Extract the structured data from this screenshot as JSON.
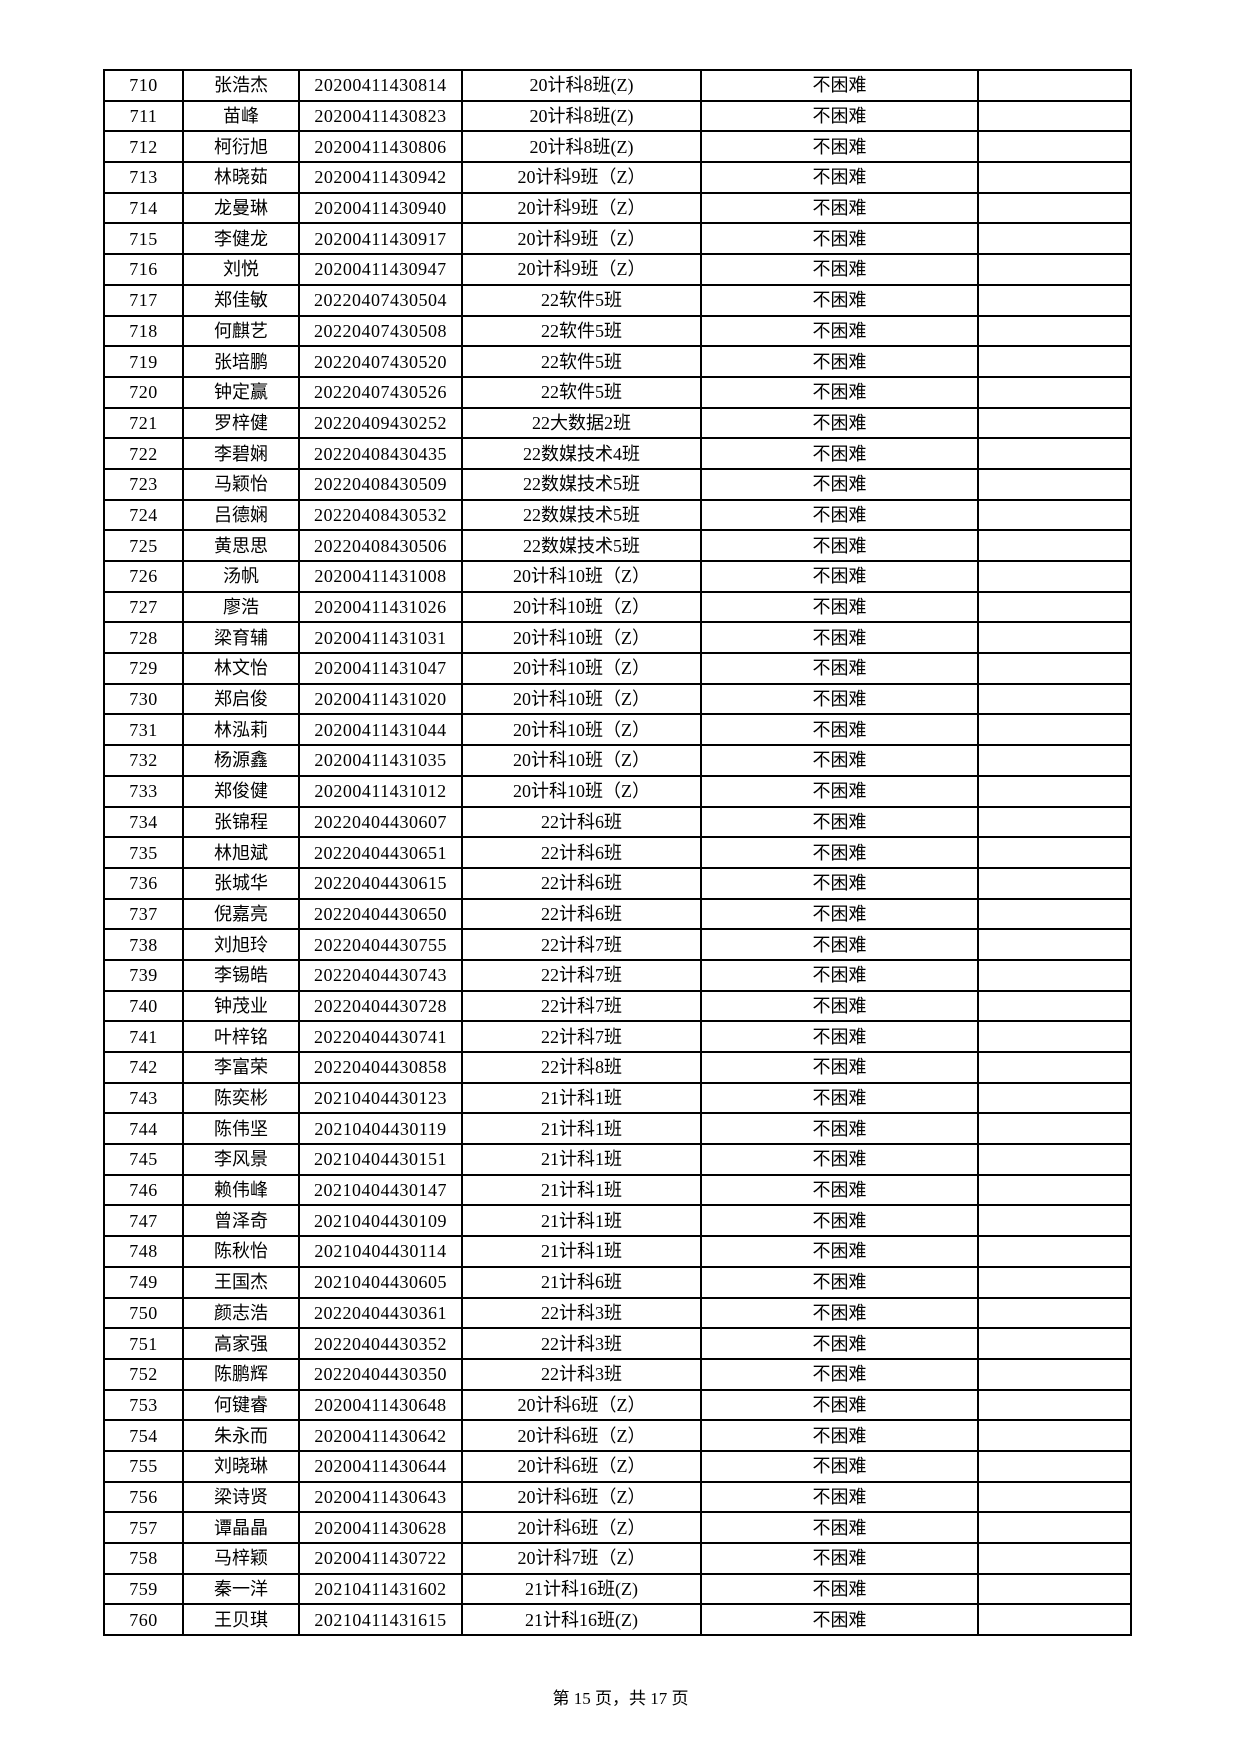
{
  "page": {
    "footer_text": "第 15 页，共 17 页"
  },
  "table": {
    "rows": [
      {
        "no": "710",
        "name": "张浩杰",
        "student_id": "20200411430814",
        "class_name": "20计科8班(Z)",
        "status": "不困难",
        "note": ""
      },
      {
        "no": "711",
        "name": "苗峰",
        "student_id": "20200411430823",
        "class_name": "20计科8班(Z)",
        "status": "不困难",
        "note": ""
      },
      {
        "no": "712",
        "name": "柯衍旭",
        "student_id": "20200411430806",
        "class_name": "20计科8班(Z)",
        "status": "不困难",
        "note": ""
      },
      {
        "no": "713",
        "name": "林晓茹",
        "student_id": "20200411430942",
        "class_name": "20计科9班（Z）",
        "status": "不困难",
        "note": ""
      },
      {
        "no": "714",
        "name": "龙曼琳",
        "student_id": "20200411430940",
        "class_name": "20计科9班（Z）",
        "status": "不困难",
        "note": ""
      },
      {
        "no": "715",
        "name": "李健龙",
        "student_id": "20200411430917",
        "class_name": "20计科9班（Z）",
        "status": "不困难",
        "note": ""
      },
      {
        "no": "716",
        "name": "刘悦",
        "student_id": "20200411430947",
        "class_name": "20计科9班（Z）",
        "status": "不困难",
        "note": ""
      },
      {
        "no": "717",
        "name": "郑佳敏",
        "student_id": "20220407430504",
        "class_name": "22软件5班",
        "status": "不困难",
        "note": ""
      },
      {
        "no": "718",
        "name": "何麒艺",
        "student_id": "20220407430508",
        "class_name": "22软件5班",
        "status": "不困难",
        "note": ""
      },
      {
        "no": "719",
        "name": "张培鹏",
        "student_id": "20220407430520",
        "class_name": "22软件5班",
        "status": "不困难",
        "note": ""
      },
      {
        "no": "720",
        "name": "钟定赢",
        "student_id": "20220407430526",
        "class_name": "22软件5班",
        "status": "不困难",
        "note": ""
      },
      {
        "no": "721",
        "name": "罗梓健",
        "student_id": "20220409430252",
        "class_name": "22大数据2班",
        "status": "不困难",
        "note": ""
      },
      {
        "no": "722",
        "name": "李碧娴",
        "student_id": "20220408430435",
        "class_name": "22数媒技术4班",
        "status": "不困难",
        "note": ""
      },
      {
        "no": "723",
        "name": "马颖怡",
        "student_id": "20220408430509",
        "class_name": "22数媒技术5班",
        "status": "不困难",
        "note": ""
      },
      {
        "no": "724",
        "name": "吕德娴",
        "student_id": "20220408430532",
        "class_name": "22数媒技术5班",
        "status": "不困难",
        "note": ""
      },
      {
        "no": "725",
        "name": "黄思思",
        "student_id": "20220408430506",
        "class_name": "22数媒技术5班",
        "status": "不困难",
        "note": ""
      },
      {
        "no": "726",
        "name": "汤帆",
        "student_id": "20200411431008",
        "class_name": "20计科10班（Z）",
        "status": "不困难",
        "note": ""
      },
      {
        "no": "727",
        "name": "廖浩",
        "student_id": "20200411431026",
        "class_name": "20计科10班（Z）",
        "status": "不困难",
        "note": ""
      },
      {
        "no": "728",
        "name": "梁育辅",
        "student_id": "20200411431031",
        "class_name": "20计科10班（Z）",
        "status": "不困难",
        "note": ""
      },
      {
        "no": "729",
        "name": "林文怡",
        "student_id": "20200411431047",
        "class_name": "20计科10班（Z）",
        "status": "不困难",
        "note": ""
      },
      {
        "no": "730",
        "name": "郑启俊",
        "student_id": "20200411431020",
        "class_name": "20计科10班（Z）",
        "status": "不困难",
        "note": ""
      },
      {
        "no": "731",
        "name": "林泓莉",
        "student_id": "20200411431044",
        "class_name": "20计科10班（Z）",
        "status": "不困难",
        "note": ""
      },
      {
        "no": "732",
        "name": "杨源鑫",
        "student_id": "20200411431035",
        "class_name": "20计科10班（Z）",
        "status": "不困难",
        "note": ""
      },
      {
        "no": "733",
        "name": "郑俊健",
        "student_id": "20200411431012",
        "class_name": "20计科10班（Z）",
        "status": "不困难",
        "note": ""
      },
      {
        "no": "734",
        "name": "张锦程",
        "student_id": "20220404430607",
        "class_name": "22计科6班",
        "status": "不困难",
        "note": ""
      },
      {
        "no": "735",
        "name": "林旭斌",
        "student_id": "20220404430651",
        "class_name": "22计科6班",
        "status": "不困难",
        "note": ""
      },
      {
        "no": "736",
        "name": "张城华",
        "student_id": "20220404430615",
        "class_name": "22计科6班",
        "status": "不困难",
        "note": ""
      },
      {
        "no": "737",
        "name": "倪嘉亮",
        "student_id": "20220404430650",
        "class_name": "22计科6班",
        "status": "不困难",
        "note": ""
      },
      {
        "no": "738",
        "name": "刘旭玲",
        "student_id": "20220404430755",
        "class_name": "22计科7班",
        "status": "不困难",
        "note": ""
      },
      {
        "no": "739",
        "name": "李锡皓",
        "student_id": "20220404430743",
        "class_name": "22计科7班",
        "status": "不困难",
        "note": ""
      },
      {
        "no": "740",
        "name": "钟茂业",
        "student_id": "20220404430728",
        "class_name": "22计科7班",
        "status": "不困难",
        "note": ""
      },
      {
        "no": "741",
        "name": "叶梓铭",
        "student_id": "20220404430741",
        "class_name": "22计科7班",
        "status": "不困难",
        "note": ""
      },
      {
        "no": "742",
        "name": "李富荣",
        "student_id": "20220404430858",
        "class_name": "22计科8班",
        "status": "不困难",
        "note": ""
      },
      {
        "no": "743",
        "name": "陈奕彬",
        "student_id": "20210404430123",
        "class_name": "21计科1班",
        "status": "不困难",
        "note": ""
      },
      {
        "no": "744",
        "name": "陈伟坚",
        "student_id": "20210404430119",
        "class_name": "21计科1班",
        "status": "不困难",
        "note": ""
      },
      {
        "no": "745",
        "name": "李风景",
        "student_id": "20210404430151",
        "class_name": "21计科1班",
        "status": "不困难",
        "note": ""
      },
      {
        "no": "746",
        "name": "赖伟峰",
        "student_id": "20210404430147",
        "class_name": "21计科1班",
        "status": "不困难",
        "note": ""
      },
      {
        "no": "747",
        "name": "曾泽奇",
        "student_id": "20210404430109",
        "class_name": "21计科1班",
        "status": "不困难",
        "note": ""
      },
      {
        "no": "748",
        "name": "陈秋怡",
        "student_id": "20210404430114",
        "class_name": "21计科1班",
        "status": "不困难",
        "note": ""
      },
      {
        "no": "749",
        "name": "王国杰",
        "student_id": "20210404430605",
        "class_name": "21计科6班",
        "status": "不困难",
        "note": ""
      },
      {
        "no": "750",
        "name": "颜志浩",
        "student_id": "20220404430361",
        "class_name": "22计科3班",
        "status": "不困难",
        "note": ""
      },
      {
        "no": "751",
        "name": "高家强",
        "student_id": "20220404430352",
        "class_name": "22计科3班",
        "status": "不困难",
        "note": ""
      },
      {
        "no": "752",
        "name": "陈鹏辉",
        "student_id": "20220404430350",
        "class_name": "22计科3班",
        "status": "不困难",
        "note": ""
      },
      {
        "no": "753",
        "name": "何键睿",
        "student_id": "20200411430648",
        "class_name": "20计科6班（Z）",
        "status": "不困难",
        "note": ""
      },
      {
        "no": "754",
        "name": "朱永而",
        "student_id": "20200411430642",
        "class_name": "20计科6班（Z）",
        "status": "不困难",
        "note": ""
      },
      {
        "no": "755",
        "name": "刘晓琳",
        "student_id": "20200411430644",
        "class_name": "20计科6班（Z）",
        "status": "不困难",
        "note": ""
      },
      {
        "no": "756",
        "name": "梁诗贤",
        "student_id": "20200411430643",
        "class_name": "20计科6班（Z）",
        "status": "不困难",
        "note": ""
      },
      {
        "no": "757",
        "name": "谭晶晶",
        "student_id": "20200411430628",
        "class_name": "20计科6班（Z）",
        "status": "不困难",
        "note": ""
      },
      {
        "no": "758",
        "name": "马梓颖",
        "student_id": "20200411430722",
        "class_name": "20计科7班（Z）",
        "status": "不困难",
        "note": ""
      },
      {
        "no": "759",
        "name": "秦一洋",
        "student_id": "20210411431602",
        "class_name": "21计科16班(Z)",
        "status": "不困难",
        "note": ""
      },
      {
        "no": "760",
        "name": "王贝琪",
        "student_id": "20210411431615",
        "class_name": "21计科16班(Z)",
        "status": "不困难",
        "note": ""
      }
    ]
  }
}
